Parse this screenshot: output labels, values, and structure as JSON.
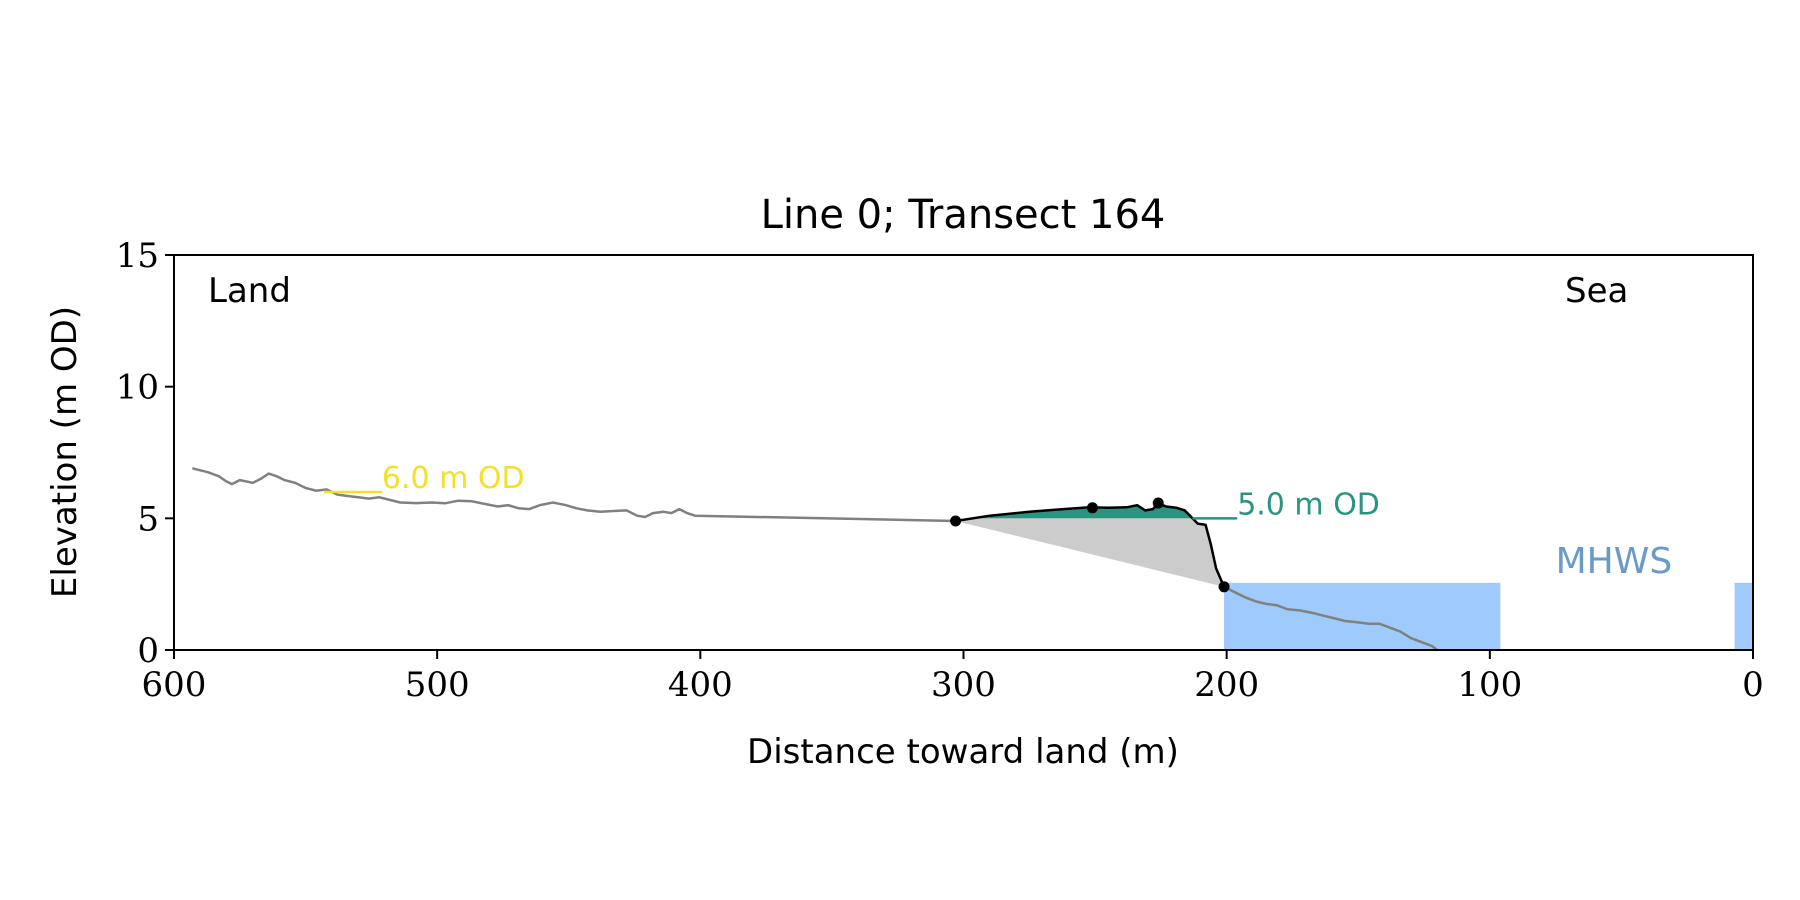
{
  "chart_data": {
    "type": "line",
    "title": "Line 0; Transect 164",
    "xlabel": "Distance toward land (m)",
    "ylabel": "Elevation (m OD)",
    "xlim": [
      600,
      0
    ],
    "ylim": [
      0,
      15
    ],
    "x_ticks": [
      600,
      500,
      400,
      300,
      200,
      100,
      0
    ],
    "y_ticks": [
      0,
      5,
      10,
      15
    ],
    "grid": false,
    "corner_labels": {
      "left": "Land",
      "right": "Sea"
    },
    "colors": {
      "profile": "#808080",
      "dune": "#000000",
      "dune_fill": "#2a9480",
      "toe_fill": "#cccccc",
      "sea_fill": "#9ecbfb",
      "level_6": "#f3e02a",
      "level_5": "#2a9480",
      "mhws_label": "#6a9ac7"
    },
    "series": [
      {
        "key": "profile",
        "points": [
          [
            593,
            6.9
          ],
          [
            587,
            6.75
          ],
          [
            583,
            6.6
          ],
          [
            580,
            6.4
          ],
          [
            578,
            6.3
          ],
          [
            575,
            6.45
          ],
          [
            570,
            6.35
          ],
          [
            567,
            6.5
          ],
          [
            564,
            6.7
          ],
          [
            561,
            6.6
          ],
          [
            558,
            6.45
          ],
          [
            554,
            6.35
          ],
          [
            550,
            6.15
          ],
          [
            546,
            6.05
          ],
          [
            542,
            6.1
          ],
          [
            538,
            5.9
          ],
          [
            534,
            5.85
          ],
          [
            530,
            5.8
          ],
          [
            526,
            5.75
          ],
          [
            522,
            5.8
          ],
          [
            518,
            5.7
          ],
          [
            514,
            5.6
          ],
          [
            508,
            5.58
          ],
          [
            502,
            5.6
          ],
          [
            497,
            5.57
          ],
          [
            492,
            5.67
          ],
          [
            487,
            5.65
          ],
          [
            482,
            5.55
          ],
          [
            477,
            5.45
          ],
          [
            473,
            5.5
          ],
          [
            469,
            5.38
          ],
          [
            465,
            5.35
          ],
          [
            461,
            5.5
          ],
          [
            456,
            5.6
          ],
          [
            451,
            5.5
          ],
          [
            447,
            5.38
          ],
          [
            443,
            5.3
          ],
          [
            438,
            5.25
          ],
          [
            433,
            5.28
          ],
          [
            428,
            5.3
          ],
          [
            424,
            5.1
          ],
          [
            421,
            5.05
          ],
          [
            418,
            5.2
          ],
          [
            414,
            5.25
          ],
          [
            411,
            5.2
          ],
          [
            408,
            5.35
          ],
          [
            405,
            5.2
          ],
          [
            402,
            5.1
          ],
          [
            303,
            4.9
          ]
        ]
      },
      {
        "key": "profile_lower",
        "points": [
          [
            201,
            2.4
          ],
          [
            197,
            2.2
          ],
          [
            193,
            2.0
          ],
          [
            189,
            1.85
          ],
          [
            185,
            1.75
          ],
          [
            181,
            1.7
          ],
          [
            177,
            1.55
          ],
          [
            172,
            1.5
          ],
          [
            167,
            1.4
          ],
          [
            163,
            1.3
          ],
          [
            159,
            1.2
          ],
          [
            155,
            1.1
          ],
          [
            150,
            1.05
          ],
          [
            146,
            1.0
          ],
          [
            142,
            1.0
          ],
          [
            138,
            0.85
          ],
          [
            134,
            0.7
          ],
          [
            130,
            0.45
          ],
          [
            126,
            0.3
          ],
          [
            122,
            0.15
          ],
          [
            120,
            0.0
          ]
        ]
      },
      {
        "key": "dune",
        "points": [
          [
            303,
            4.9
          ],
          [
            290,
            5.1
          ],
          [
            275,
            5.25
          ],
          [
            262,
            5.35
          ],
          [
            252,
            5.42
          ],
          [
            245,
            5.4
          ],
          [
            238,
            5.42
          ],
          [
            234,
            5.5
          ],
          [
            231,
            5.3
          ],
          [
            228,
            5.35
          ],
          [
            226,
            5.58
          ],
          [
            223,
            5.45
          ],
          [
            219,
            5.4
          ],
          [
            216,
            5.3
          ],
          [
            213,
            5.0
          ],
          [
            211,
            4.8
          ],
          [
            208,
            4.75
          ],
          [
            206,
            4.0
          ],
          [
            204,
            3.1
          ],
          [
            201,
            2.4
          ]
        ]
      }
    ],
    "marker_points": [
      [
        303,
        4.9
      ],
      [
        251,
        5.4
      ],
      [
        226,
        5.58
      ],
      [
        201,
        2.4
      ]
    ],
    "annotations": [
      {
        "key": "level6",
        "text": "6.0 m OD",
        "x": 521,
        "y": 6.0,
        "line_from": 543,
        "line_to": 521
      },
      {
        "key": "level5",
        "text": "5.0 m OD",
        "x": 196,
        "y": 5.0,
        "line_from": 213,
        "line_to": 196
      },
      {
        "key": "mhws",
        "text": "MHWS",
        "x": 75,
        "y": 2.55
      }
    ],
    "sea_level_y": 2.55,
    "sea_regions": [
      [
        201,
        96
      ],
      [
        7,
        0
      ]
    ]
  }
}
